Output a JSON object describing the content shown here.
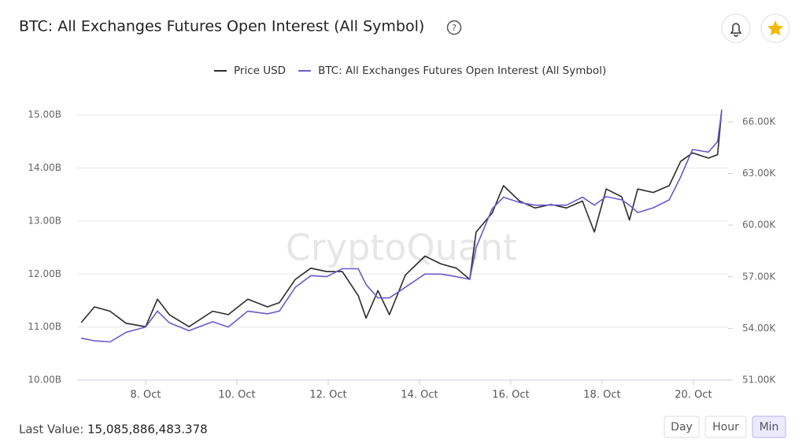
{
  "header": {
    "title": "BTC: All Exchanges Futures Open Interest (All Symbol)"
  },
  "chart_data": {
    "type": "line",
    "watermark": "CryptoQuant",
    "x": [
      6.59,
      6.88,
      7.22,
      7.57,
      8.0,
      8.26,
      8.52,
      8.95,
      9.47,
      9.81,
      10.24,
      10.67,
      10.93,
      11.28,
      11.62,
      11.97,
      12.31,
      12.66,
      12.83,
      13.09,
      13.34,
      13.69,
      14.12,
      14.47,
      14.81,
      15.1,
      15.24,
      15.59,
      15.84,
      16.19,
      16.53,
      16.88,
      17.22,
      17.57,
      17.83,
      18.09,
      18.43,
      18.6,
      18.78,
      19.12,
      19.47,
      19.72,
      19.98,
      20.33,
      20.53,
      20.62
    ],
    "xlim": [
      6.5,
      20.76
    ],
    "xticks": [
      {
        "value": 8,
        "label": "8. Oct"
      },
      {
        "value": 10,
        "label": "10. Oct"
      },
      {
        "value": 12,
        "label": "12. Oct"
      },
      {
        "value": 14,
        "label": "14. Oct"
      },
      {
        "value": 16,
        "label": "16. Oct"
      },
      {
        "value": 18,
        "label": "18. Oct"
      },
      {
        "value": 20,
        "label": "20. Oct"
      }
    ],
    "ylim": [
      10,
      15.24
    ],
    "yticks": [
      {
        "value": 10,
        "label": "10.00B"
      },
      {
        "value": 11,
        "label": "11.00B"
      },
      {
        "value": 12,
        "label": "12.00B"
      },
      {
        "value": 13,
        "label": "13.00B"
      },
      {
        "value": 14,
        "label": "14.00B"
      },
      {
        "value": 15,
        "label": "15.00B"
      }
    ],
    "y2lim": [
      51,
      67.14
    ],
    "y2ticks": [
      {
        "value": 51,
        "label": "51.00K"
      },
      {
        "value": 54,
        "label": "54.00K"
      },
      {
        "value": 57,
        "label": "57.00K"
      },
      {
        "value": 60,
        "label": "60.00K"
      },
      {
        "value": 63,
        "label": "63.00K"
      },
      {
        "value": 66,
        "label": "66.00K"
      }
    ],
    "grid": true,
    "series": [
      {
        "name": "Price USD",
        "color": "#2b2b2b",
        "axis": "y2",
        "values": [
          54.34,
          55.25,
          55.0,
          54.3,
          54.1,
          55.7,
          54.8,
          54.1,
          55.0,
          54.8,
          55.7,
          55.25,
          55.5,
          56.85,
          57.5,
          57.3,
          57.3,
          55.9,
          54.6,
          56.2,
          54.8,
          57.1,
          58.2,
          57.75,
          57.5,
          56.85,
          59.6,
          60.7,
          62.3,
          61.4,
          61.0,
          61.2,
          61.0,
          61.4,
          59.6,
          62.1,
          61.65,
          60.3,
          62.1,
          61.9,
          62.3,
          63.7,
          64.2,
          63.9,
          64.1,
          66.7
        ]
      },
      {
        "name": "BTC: All Exchanges Futures Open Interest (All Symbol)",
        "color": "#6a5acd",
        "values": [
          10.79,
          10.74,
          10.72,
          10.9,
          11.0,
          11.3,
          11.08,
          10.93,
          11.1,
          11.0,
          11.3,
          11.25,
          11.3,
          11.75,
          11.97,
          11.95,
          12.1,
          12.1,
          11.8,
          11.55,
          11.55,
          11.75,
          12.0,
          12.0,
          11.95,
          11.9,
          12.5,
          13.23,
          13.45,
          13.35,
          13.3,
          13.3,
          13.3,
          13.45,
          13.3,
          13.46,
          13.4,
          13.3,
          13.16,
          13.25,
          13.4,
          13.83,
          14.35,
          14.3,
          14.5,
          15.09
        ]
      }
    ]
  },
  "footer": {
    "last_value_label": "Last Value:",
    "last_value": "15,085,886,483.378",
    "buttons": [
      "Day",
      "Hour",
      "Min"
    ]
  }
}
